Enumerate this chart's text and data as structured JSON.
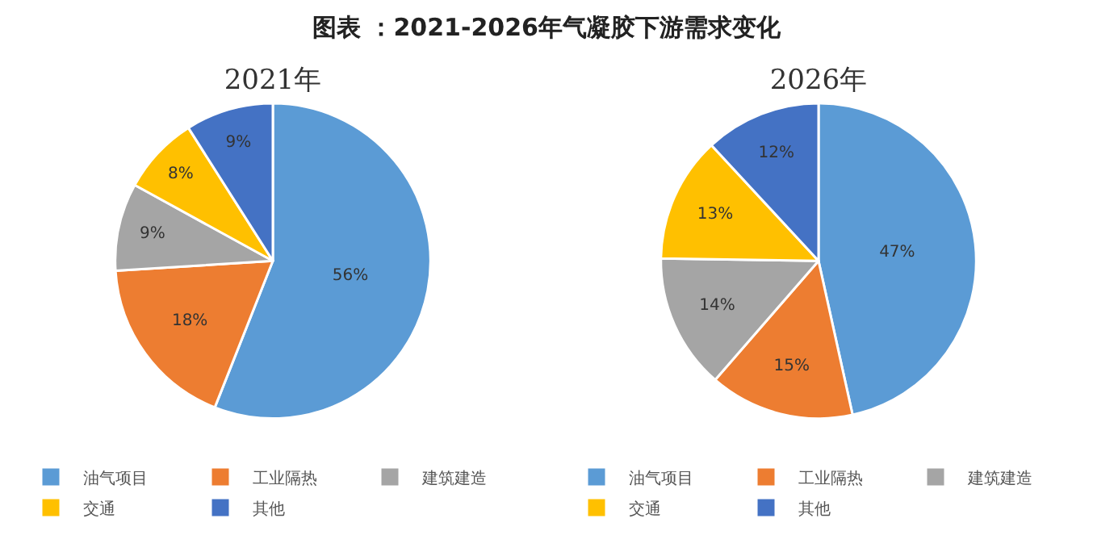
{
  "chart_data": [
    {
      "type": "pie",
      "title": "图表 ：2021-2026年气凝胶下游需求变化",
      "subtitle": "2021年",
      "categories": [
        "油气项目",
        "工业隔热",
        "建筑建造",
        "交通",
        "其他"
      ],
      "values": [
        56,
        18,
        9,
        8,
        9
      ],
      "value_labels": [
        "56%",
        "18%",
        "9%",
        "8%",
        "9%"
      ],
      "colors": [
        "#5b9bd5",
        "#ed7d31",
        "#a5a5a5",
        "#ffc000",
        "#4472c4"
      ],
      "legend": "bottom"
    },
    {
      "type": "pie",
      "title": "2026年",
      "categories": [
        "油气项目",
        "工业隔热",
        "建筑建造",
        "交通",
        "其他"
      ],
      "values": [
        47,
        15,
        14,
        13,
        12
      ],
      "value_labels": [
        "47%",
        "15%",
        "14%",
        "13%",
        "12%"
      ],
      "colors": [
        "#5b9bd5",
        "#ed7d31",
        "#a5a5a5",
        "#ffc000",
        "#4472c4"
      ],
      "legend": "bottom"
    }
  ]
}
